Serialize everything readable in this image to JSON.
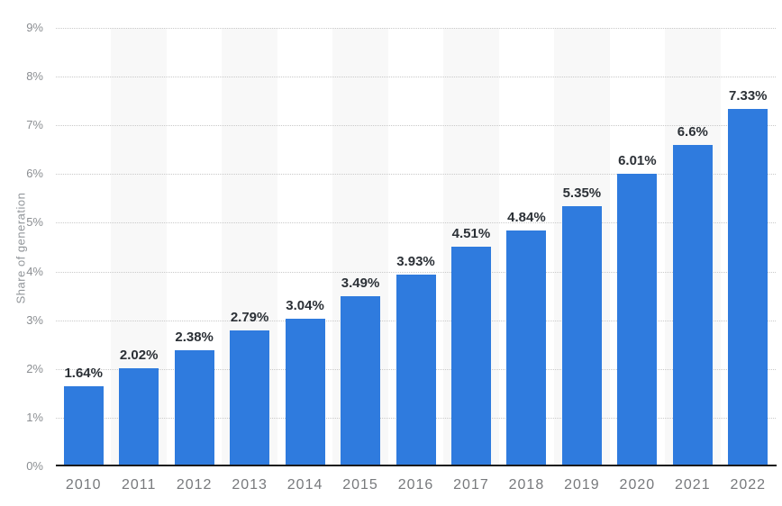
{
  "chart_data": {
    "type": "bar",
    "ylabel": "Share of generation",
    "categories": [
      "2010",
      "2011",
      "2012",
      "2013",
      "2014",
      "2015",
      "2016",
      "2017",
      "2018",
      "2019",
      "2020",
      "2021",
      "2022"
    ],
    "values": [
      1.64,
      2.02,
      2.38,
      2.79,
      3.04,
      3.49,
      3.93,
      4.51,
      4.84,
      5.35,
      6.01,
      6.6,
      7.33
    ],
    "data_labels": [
      "1.64%",
      "2.02%",
      "2.38%",
      "2.79%",
      "3.04%",
      "3.49%",
      "3.93%",
      "4.51%",
      "4.84%",
      "5.35%",
      "6.01%",
      "6.6%",
      "7.33%"
    ],
    "y_tick_labels": [
      "0%",
      "1%",
      "2%",
      "3%",
      "4%",
      "5%",
      "6%",
      "7%",
      "8%",
      "9%"
    ],
    "ylim": [
      0,
      9
    ],
    "grid": "horizontal-dotted",
    "legend": "none",
    "colors": {
      "bar": "#2f7bde",
      "stripe": "#f8f8f8",
      "gridline": "#c9c9c9",
      "axis_line": "#1a1a1a",
      "y_tick_label": "#8b8e92",
      "x_tick_label": "#77797c",
      "data_label": "#2b3036",
      "y_axis_title": "#92969a",
      "background": "#ffffff"
    }
  }
}
